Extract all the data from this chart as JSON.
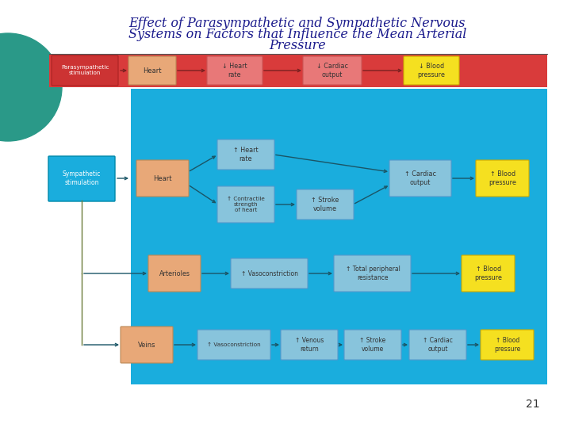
{
  "title_line1": "Effect of Parasympathetic and Sympathetic Nervous",
  "title_line2": "Systems on Factors that Influence the Mean Arterial",
  "title_line3": "Pressure",
  "title_color": "#1A1A8C",
  "bg_color": "#FFFFFF",
  "page_number": "21",
  "para_bg": "#D93B3B",
  "symp_bg": "#1AADDD",
  "box_orange": "#E8A878",
  "box_blue_light": "#88C4DC",
  "box_yellow": "#F5E020",
  "box_red_light": "#E87878",
  "box_para_stim": "#CC3333",
  "box_symp_stim": "#1AADDD",
  "arrow_para": "#7A2020",
  "arrow_symp": "#1A5566",
  "line_symp": "#6B7B3A",
  "teal_color": "#2A9988"
}
